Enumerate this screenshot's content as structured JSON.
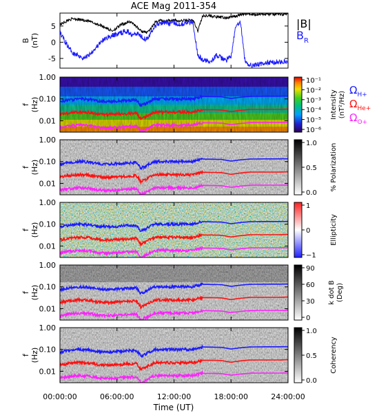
{
  "title": "ACE Mag 2011-354",
  "colors": {
    "bmag": "#000000",
    "br": "#1a1aff",
    "hplus": "#1a1aff",
    "heplus": "#ff1010",
    "oplus": "#ff20ff"
  },
  "legend": {
    "bmag": "|B|",
    "br_main": "B",
    "br_sub": "R",
    "omega": "Ω",
    "h_sub": "H+",
    "he_sub": "He+",
    "o_sub": "O+"
  },
  "panels": [
    {
      "id": "b",
      "ylabel_main": "B",
      "ylabel_unit": "(nT)",
      "yticks": [
        "5",
        "0",
        "-5"
      ]
    },
    {
      "id": "intensity",
      "ylabel_main": "f",
      "ylabel_unit": "(Hz)",
      "yticks": [
        "1.00",
        "0.10",
        "0.01"
      ],
      "cbar_label_1": "Intensity",
      "cbar_label_2": "(nT²/Hz)",
      "cbar_ticks": [
        "10⁻¹",
        "10⁻²",
        "10⁻³",
        "10⁻⁴",
        "10⁻⁵",
        "10⁻⁶"
      ]
    },
    {
      "id": "polarization",
      "ylabel_main": "f",
      "ylabel_unit": "(Hz)",
      "yticks": [
        "1.00",
        "0.10",
        "0.01"
      ],
      "cbar_label_1": "% Polarization",
      "cbar_label_2": "",
      "cbar_ticks": [
        "1.0",
        "0.5",
        "0.0"
      ]
    },
    {
      "id": "ellipticity",
      "ylabel_main": "f",
      "ylabel_unit": "(Hz)",
      "yticks": [
        "1.00",
        "0.10",
        "0.01"
      ],
      "cbar_label_1": "Ellipticity",
      "cbar_label_2": "",
      "cbar_ticks": [
        "1",
        "0",
        "−1"
      ]
    },
    {
      "id": "kdotb",
      "ylabel_main": "f",
      "ylabel_unit": "(Hz)",
      "yticks": [
        "1.00",
        "0.10",
        "0.01"
      ],
      "cbar_label_1": "k dot B",
      "cbar_label_2": "(Deg)",
      "cbar_ticks": [
        "90",
        "60",
        "30",
        "0"
      ]
    },
    {
      "id": "coherency",
      "ylabel_main": "f",
      "ylabel_unit": "(Hz)",
      "yticks": [
        "1.00",
        "0.10",
        "0.01"
      ],
      "cbar_label_1": "Coherency",
      "cbar_label_2": "",
      "cbar_ticks": [
        "1.0",
        "0.5",
        "0.0"
      ]
    }
  ],
  "xaxis": {
    "label": "Time (UT)",
    "ticks": [
      "00:00:00",
      "06:00:00",
      "12:00:00",
      "18:00:00",
      "24:00:00"
    ]
  },
  "chart_data": {
    "type": "line",
    "title": "ACE Mag 2011-354",
    "x_unit": "hours UT",
    "xlim": [
      0,
      24
    ],
    "b_panel": {
      "ylim": [
        -8,
        9
      ],
      "x": [
        0,
        0.5,
        1,
        1.5,
        2,
        2.5,
        3,
        3.5,
        4,
        4.5,
        5,
        5.5,
        6,
        6.5,
        7,
        7.5,
        8,
        8.5,
        9,
        9.5,
        10,
        10.5,
        11,
        11.5,
        12,
        12.5,
        13,
        13.5,
        14,
        14.5,
        15,
        15.5,
        16,
        16.5,
        17,
        17.5,
        18,
        18.5,
        19,
        19.5,
        20,
        20.5,
        21,
        21.5,
        22,
        22.5,
        23,
        23.5,
        24
      ],
      "series": [
        {
          "name": "|B|",
          "values": [
            5.5,
            6.2,
            7.0,
            7.3,
            7.0,
            6.8,
            6.5,
            6.0,
            5.5,
            5.0,
            4.2,
            3.5,
            4.5,
            5.5,
            6.0,
            6.3,
            5.0,
            3.5,
            3.0,
            3.8,
            6.0,
            6.8,
            6.5,
            6.8,
            6.8,
            6.5,
            6.7,
            6.8,
            6.8,
            3.5,
            8.0,
            8.3,
            8.0,
            7.8,
            7.7,
            7.5,
            7.8,
            8.0,
            8.5,
            8.7,
            8.7,
            8.6,
            8.7,
            8.6,
            8.7,
            8.6,
            8.7,
            8.6,
            8.8
          ]
        },
        {
          "name": "B_R",
          "values": [
            3.0,
            0.5,
            -2.0,
            -3.5,
            -4.0,
            -5.0,
            -4.0,
            -2.5,
            -1.0,
            0.5,
            1.5,
            2.0,
            2.5,
            3.0,
            3.5,
            2.5,
            3.0,
            2.0,
            1.0,
            2.5,
            5.0,
            6.0,
            6.2,
            5.8,
            6.0,
            5.5,
            5.8,
            6.0,
            6.2,
            -4.0,
            -5.5,
            -5.8,
            -5.5,
            -4.0,
            -5.0,
            -5.5,
            -4.5,
            5.0,
            6.0,
            -6.5,
            -7.0,
            -7.0,
            -6.8,
            -6.5,
            -6.3,
            -6.2,
            -6.0,
            -6.1,
            -6.0
          ]
        }
      ]
    },
    "gyrofrequency_panels": {
      "yscale": "log",
      "ylim": [
        0.003,
        1.0
      ],
      "x": [
        0,
        1,
        2,
        3,
        4,
        5,
        6,
        7,
        8,
        8.5,
        9,
        10,
        11,
        12,
        13,
        14,
        15,
        16,
        17,
        18,
        19,
        20,
        21,
        22,
        23,
        24
      ],
      "series": [
        {
          "name": "Ω_H+",
          "values": [
            0.075,
            0.09,
            0.1,
            0.095,
            0.08,
            0.075,
            0.08,
            0.085,
            0.09,
            0.05,
            0.06,
            0.1,
            0.1,
            0.1,
            0.1,
            0.1,
            0.13,
            0.128,
            0.125,
            0.105,
            0.12,
            0.13,
            0.132,
            0.133,
            0.133,
            0.134
          ]
        },
        {
          "name": "Ω_He+",
          "values": [
            0.019,
            0.023,
            0.025,
            0.024,
            0.02,
            0.019,
            0.02,
            0.021,
            0.023,
            0.012,
            0.015,
            0.025,
            0.025,
            0.025,
            0.025,
            0.025,
            0.032,
            0.032,
            0.031,
            0.026,
            0.03,
            0.033,
            0.033,
            0.033,
            0.033,
            0.034
          ]
        },
        {
          "name": "Ω_O+",
          "values": [
            0.0047,
            0.0057,
            0.0063,
            0.006,
            0.005,
            0.0047,
            0.005,
            0.0053,
            0.0057,
            0.003,
            0.0038,
            0.0063,
            0.0063,
            0.0063,
            0.0063,
            0.0063,
            0.0081,
            0.008,
            0.0078,
            0.0066,
            0.0075,
            0.0082,
            0.0083,
            0.0083,
            0.0083,
            0.0084
          ]
        }
      ]
    }
  }
}
